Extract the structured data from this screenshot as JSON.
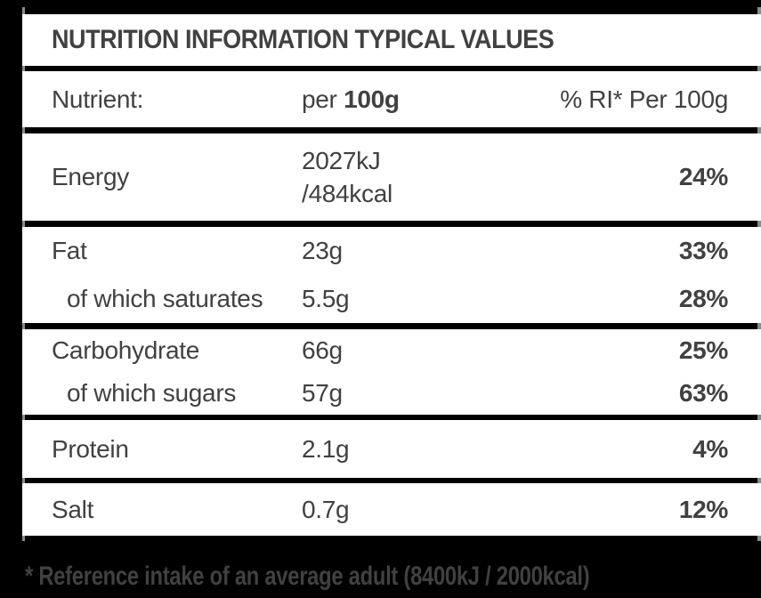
{
  "table": {
    "title": "NUTRITION INFORMATION TYPICAL VALUES",
    "columns": {
      "nutrient": "Nutrient:",
      "per_prefix": "per ",
      "per_bold": "100g",
      "ri": "% RI* Per 100g"
    },
    "rows": [
      {
        "name": "Energy",
        "value": "2027kJ",
        "value2": "/484kcal",
        "ri": "24%"
      },
      {
        "name": "Fat",
        "value": "23g",
        "ri": "33%"
      },
      {
        "name": "of which saturates",
        "value": "5.5g",
        "ri": "28%"
      },
      {
        "name": "Carbohydrate",
        "value": "66g",
        "ri": "25%"
      },
      {
        "name": "of which sugars",
        "value": "57g",
        "ri": "63%"
      },
      {
        "name": "Protein",
        "value": "2.1g",
        "ri": "4%"
      },
      {
        "name": "Salt",
        "value": "0.7g",
        "ri": "12%"
      }
    ]
  },
  "footnote": "* Reference intake of an average adult (8400kJ / 2000kcal)",
  "colors": {
    "background": "#000000",
    "card": "#ffffff",
    "rule": "#000000",
    "rule_tip": "#8b8b8b",
    "text": "#414141"
  }
}
